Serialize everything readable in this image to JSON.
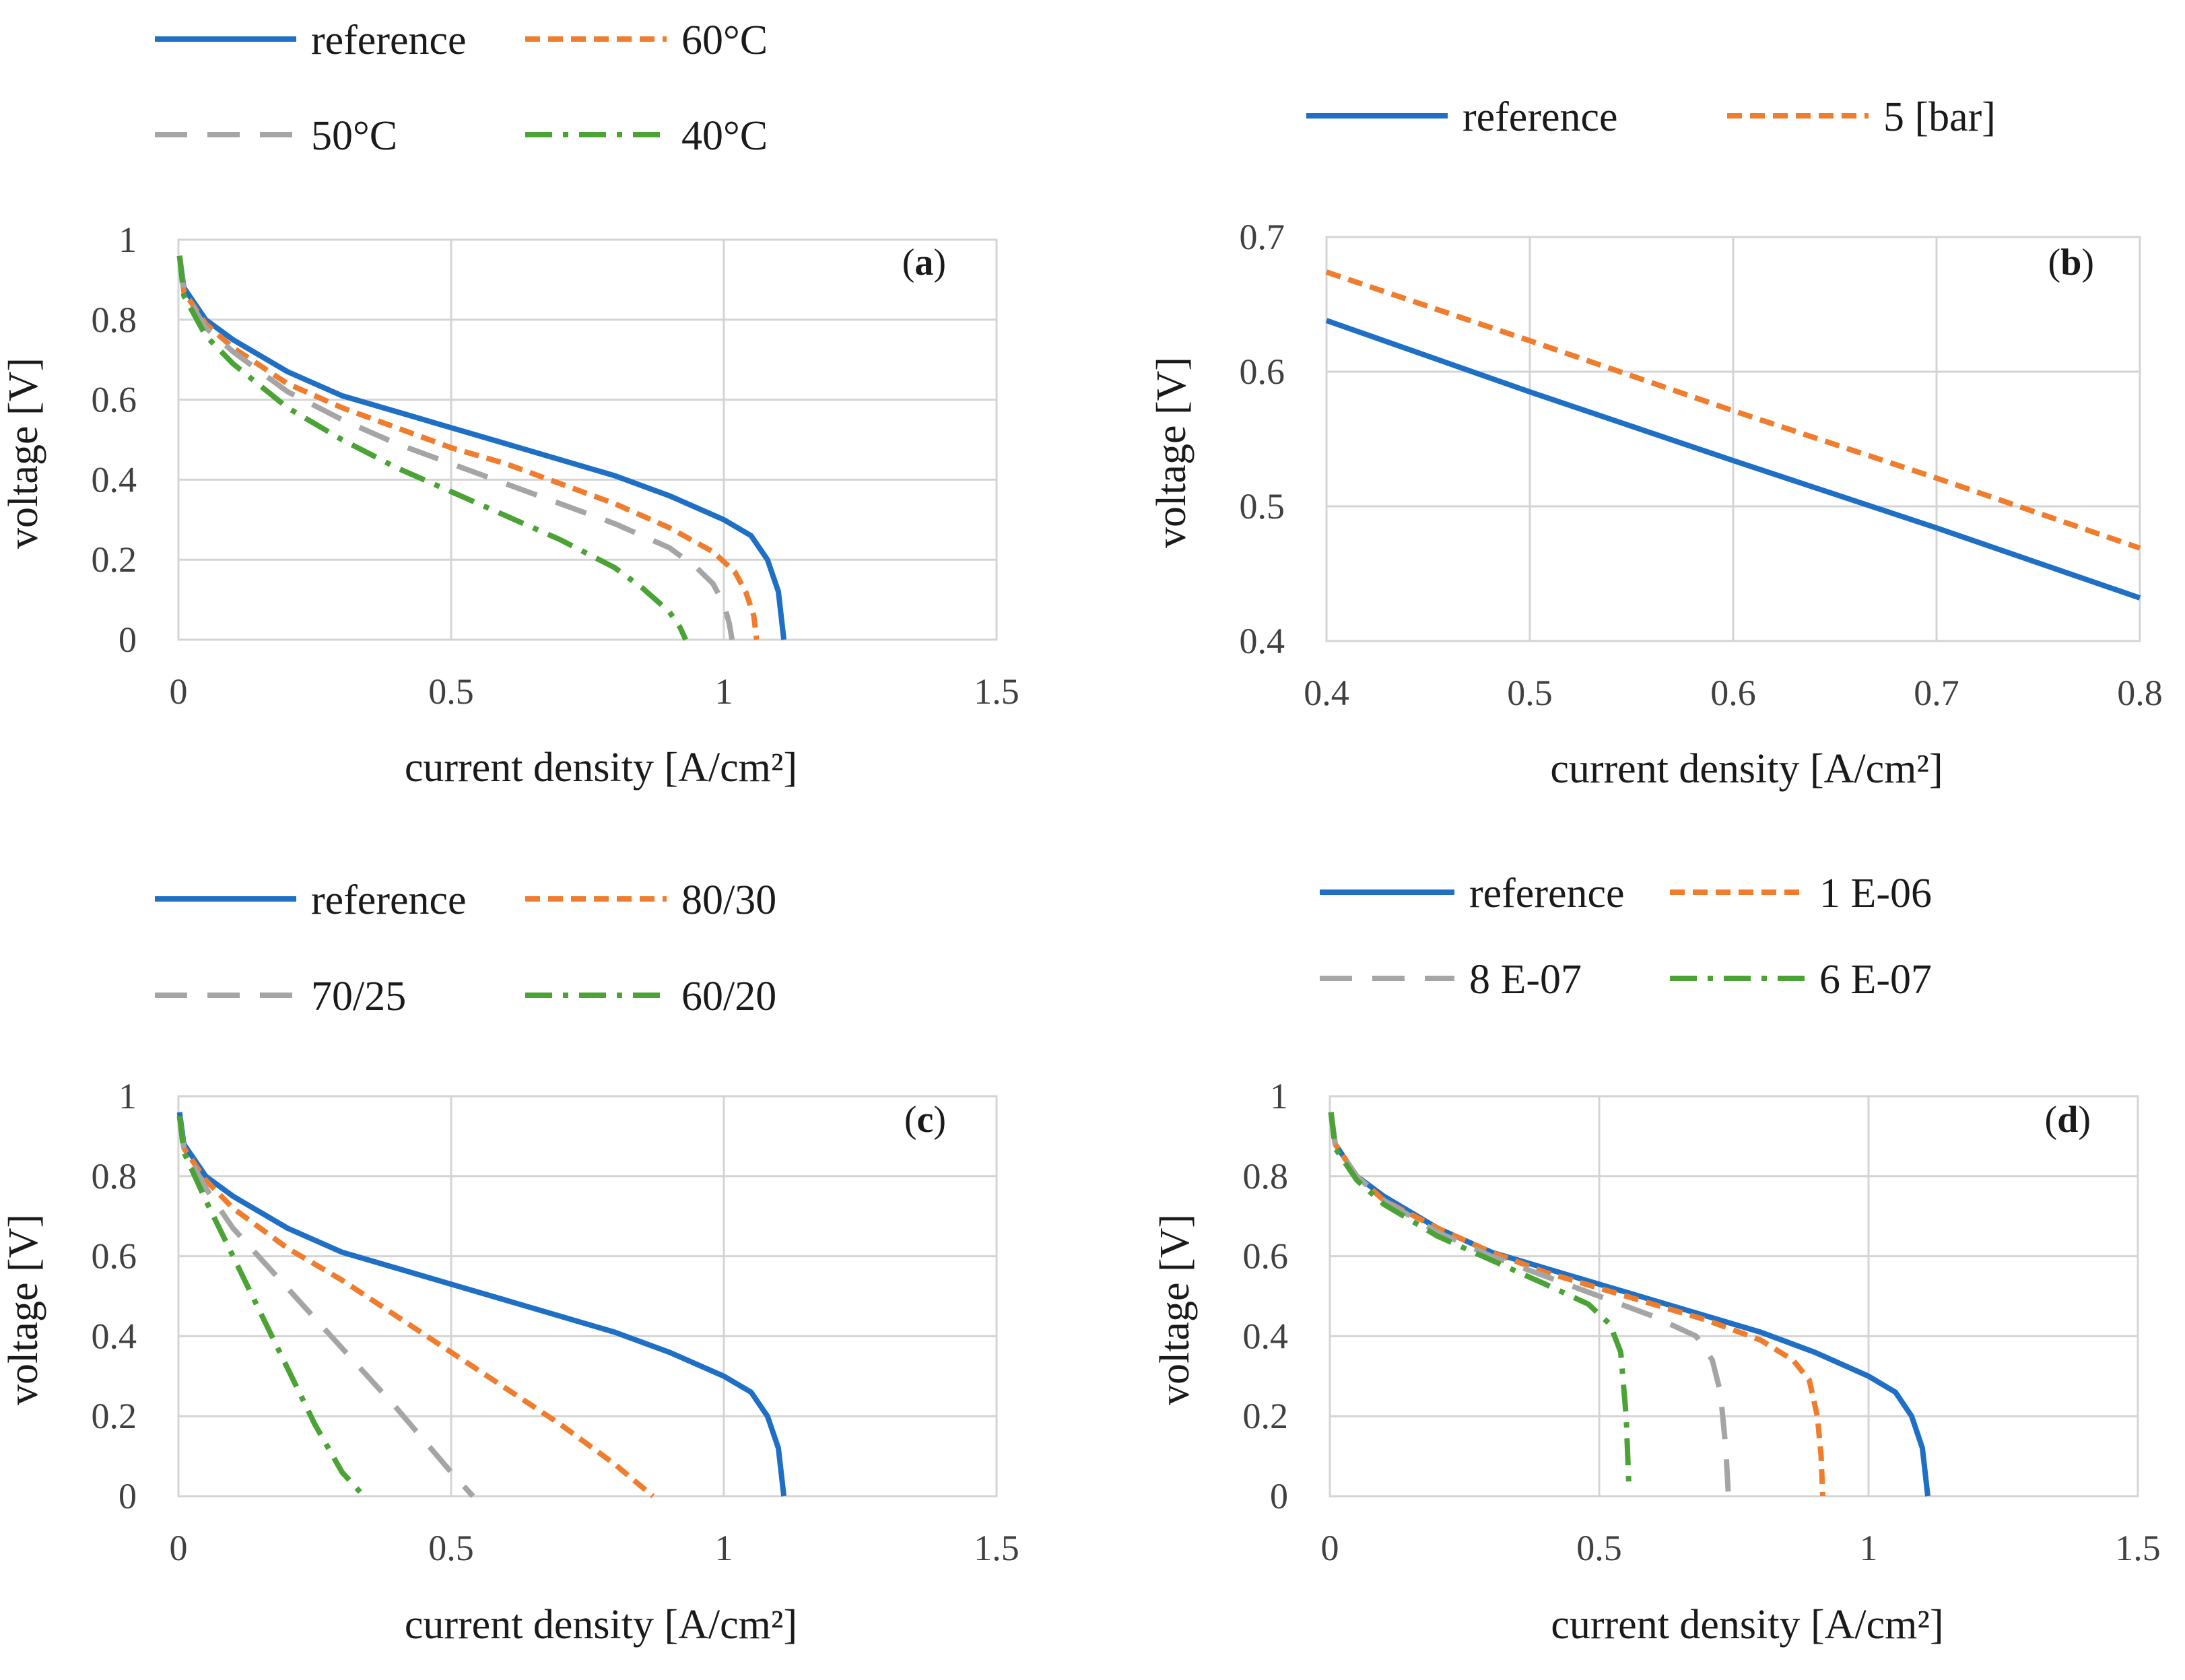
{
  "chart_data": [
    {
      "type": "line",
      "panel_label": "a",
      "xlabel": "current density [A/cm²]",
      "ylabel": "voltage [V]",
      "xlim": [
        0,
        1.5
      ],
      "ylim": [
        0,
        1
      ],
      "xticks": [
        0,
        0.5,
        1,
        1.5
      ],
      "yticks": [
        0,
        0.2,
        0.4,
        0.6,
        0.8,
        1
      ],
      "grid": true,
      "legend_position": "top",
      "series": [
        {
          "name": "reference",
          "color": "#1f6fc4",
          "style": "solid",
          "x": [
            0.002,
            0.01,
            0.05,
            0.1,
            0.2,
            0.3,
            0.4,
            0.5,
            0.6,
            0.7,
            0.8,
            0.9,
            1.0,
            1.05,
            1.08,
            1.1,
            1.11
          ],
          "y": [
            0.96,
            0.88,
            0.8,
            0.75,
            0.67,
            0.61,
            0.57,
            0.53,
            0.49,
            0.45,
            0.41,
            0.36,
            0.3,
            0.26,
            0.2,
            0.12,
            0
          ]
        },
        {
          "name": "60°C",
          "color": "#ef7d2d",
          "style": "dashed",
          "x": [
            0.002,
            0.01,
            0.05,
            0.1,
            0.2,
            0.3,
            0.4,
            0.5,
            0.6,
            0.7,
            0.8,
            0.9,
            0.98,
            1.02,
            1.04,
            1.055,
            1.06
          ],
          "y": [
            0.96,
            0.87,
            0.79,
            0.73,
            0.64,
            0.58,
            0.53,
            0.48,
            0.44,
            0.39,
            0.34,
            0.28,
            0.22,
            0.17,
            0.12,
            0.06,
            0
          ]
        },
        {
          "name": "50°C",
          "color": "#a5a5a5",
          "style": "long-dash",
          "x": [
            0.002,
            0.01,
            0.05,
            0.1,
            0.2,
            0.3,
            0.4,
            0.5,
            0.6,
            0.7,
            0.8,
            0.9,
            0.95,
            0.98,
            1.0,
            1.01,
            1.015
          ],
          "y": [
            0.96,
            0.87,
            0.78,
            0.72,
            0.62,
            0.55,
            0.49,
            0.44,
            0.39,
            0.34,
            0.29,
            0.23,
            0.18,
            0.14,
            0.09,
            0.04,
            0
          ]
        },
        {
          "name": "40°C",
          "color": "#4aa334",
          "style": "dash-dot",
          "x": [
            0.002,
            0.01,
            0.05,
            0.1,
            0.2,
            0.3,
            0.4,
            0.5,
            0.6,
            0.7,
            0.8,
            0.85,
            0.9,
            0.92,
            0.93
          ],
          "y": [
            0.96,
            0.86,
            0.76,
            0.69,
            0.58,
            0.5,
            0.43,
            0.37,
            0.31,
            0.25,
            0.18,
            0.13,
            0.07,
            0.03,
            0
          ]
        }
      ]
    },
    {
      "type": "line",
      "panel_label": "b",
      "xlabel": "current density [A/cm²]",
      "ylabel": "voltage [V]",
      "xlim": [
        0.4,
        0.8
      ],
      "ylim": [
        0.4,
        0.7
      ],
      "xticks": [
        0.4,
        0.5,
        0.6,
        0.7,
        0.8
      ],
      "yticks": [
        0.4,
        0.5,
        0.6,
        0.7
      ],
      "grid": true,
      "legend_position": "top",
      "series": [
        {
          "name": "reference",
          "color": "#1f6fc4",
          "style": "solid",
          "x": [
            0.4,
            0.5,
            0.6,
            0.7,
            0.8
          ],
          "y": [
            0.638,
            0.585,
            0.534,
            0.484,
            0.432
          ]
        },
        {
          "name": "5 [bar]",
          "color": "#ef7d2d",
          "style": "dashed",
          "x": [
            0.4,
            0.5,
            0.6,
            0.7,
            0.8
          ],
          "y": [
            0.674,
            0.623,
            0.571,
            0.521,
            0.469
          ]
        }
      ]
    },
    {
      "type": "line",
      "panel_label": "c",
      "xlabel": "current density [A/cm²]",
      "ylabel": "voltage [V]",
      "xlim": [
        0,
        1.5
      ],
      "ylim": [
        0,
        1
      ],
      "xticks": [
        0,
        0.5,
        1,
        1.5
      ],
      "yticks": [
        0,
        0.2,
        0.4,
        0.6,
        0.8,
        1
      ],
      "grid": true,
      "legend_position": "top",
      "series": [
        {
          "name": "reference",
          "color": "#1f6fc4",
          "style": "solid",
          "x": [
            0.002,
            0.01,
            0.05,
            0.1,
            0.2,
            0.3,
            0.4,
            0.5,
            0.6,
            0.7,
            0.8,
            0.9,
            1.0,
            1.05,
            1.08,
            1.1,
            1.11
          ],
          "y": [
            0.96,
            0.88,
            0.8,
            0.75,
            0.67,
            0.61,
            0.57,
            0.53,
            0.49,
            0.45,
            0.41,
            0.36,
            0.3,
            0.26,
            0.2,
            0.12,
            0
          ]
        },
        {
          "name": "80/30",
          "color": "#ef7d2d",
          "style": "dashed",
          "x": [
            0.002,
            0.01,
            0.05,
            0.1,
            0.2,
            0.3,
            0.4,
            0.5,
            0.6,
            0.7,
            0.8,
            0.87
          ],
          "y": [
            0.95,
            0.87,
            0.79,
            0.72,
            0.62,
            0.54,
            0.45,
            0.36,
            0.27,
            0.18,
            0.08,
            0
          ]
        },
        {
          "name": "70/25",
          "color": "#a5a5a5",
          "style": "long-dash",
          "x": [
            0.002,
            0.01,
            0.05,
            0.1,
            0.2,
            0.3,
            0.4,
            0.5,
            0.54
          ],
          "y": [
            0.95,
            0.87,
            0.77,
            0.67,
            0.52,
            0.37,
            0.22,
            0.06,
            0
          ]
        },
        {
          "name": "60/20",
          "color": "#4aa334",
          "style": "dash-dot",
          "x": [
            0.002,
            0.01,
            0.05,
            0.1,
            0.15,
            0.2,
            0.25,
            0.3,
            0.34
          ],
          "y": [
            0.95,
            0.86,
            0.74,
            0.6,
            0.46,
            0.32,
            0.18,
            0.06,
            0
          ]
        }
      ]
    },
    {
      "type": "line",
      "panel_label": "d",
      "xlabel": "current density [A/cm²]",
      "ylabel": "voltage [V]",
      "xlim": [
        0,
        1.5
      ],
      "ylim": [
        0,
        1
      ],
      "xticks": [
        0,
        0.5,
        1,
        1.5
      ],
      "yticks": [
        0,
        0.2,
        0.4,
        0.6,
        0.8,
        1
      ],
      "grid": true,
      "legend_position": "top",
      "series": [
        {
          "name": "reference",
          "color": "#1f6fc4",
          "style": "solid",
          "x": [
            0.002,
            0.01,
            0.05,
            0.1,
            0.2,
            0.3,
            0.4,
            0.5,
            0.6,
            0.7,
            0.8,
            0.9,
            1.0,
            1.05,
            1.08,
            1.1,
            1.11
          ],
          "y": [
            0.96,
            0.88,
            0.8,
            0.75,
            0.67,
            0.61,
            0.57,
            0.53,
            0.49,
            0.45,
            0.41,
            0.36,
            0.3,
            0.26,
            0.2,
            0.12,
            0
          ]
        },
        {
          "name": "1 E-06",
          "color": "#ef7d2d",
          "style": "dashed",
          "x": [
            0.002,
            0.01,
            0.05,
            0.1,
            0.2,
            0.3,
            0.4,
            0.5,
            0.6,
            0.7,
            0.8,
            0.86,
            0.89,
            0.905,
            0.912,
            0.915
          ],
          "y": [
            0.96,
            0.88,
            0.8,
            0.74,
            0.67,
            0.61,
            0.56,
            0.52,
            0.48,
            0.44,
            0.39,
            0.34,
            0.29,
            0.2,
            0.1,
            0
          ]
        },
        {
          "name": "8 E-07",
          "color": "#a5a5a5",
          "style": "long-dash",
          "x": [
            0.002,
            0.01,
            0.05,
            0.1,
            0.2,
            0.3,
            0.4,
            0.5,
            0.6,
            0.68,
            0.71,
            0.725,
            0.735,
            0.74
          ],
          "y": [
            0.96,
            0.88,
            0.8,
            0.74,
            0.66,
            0.6,
            0.55,
            0.5,
            0.45,
            0.4,
            0.34,
            0.26,
            0.12,
            0
          ]
        },
        {
          "name": "6 E-07",
          "color": "#4aa334",
          "style": "dash-dot",
          "x": [
            0.002,
            0.01,
            0.05,
            0.1,
            0.2,
            0.3,
            0.4,
            0.48,
            0.52,
            0.54,
            0.55,
            0.555
          ],
          "y": [
            0.96,
            0.87,
            0.79,
            0.73,
            0.65,
            0.59,
            0.53,
            0.48,
            0.43,
            0.36,
            0.2,
            0.03
          ]
        }
      ]
    }
  ]
}
